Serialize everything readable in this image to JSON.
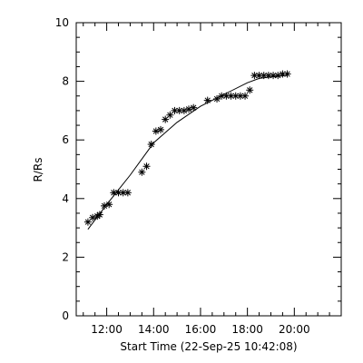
{
  "chart_data": {
    "type": "scatter",
    "title": "",
    "xlabel": "Start Time (22-Sep-25 10:42:08)",
    "ylabel": "R/Rs",
    "x_unit": "clock time (HH:MM)",
    "xlim": [
      "10:42",
      "22:00"
    ],
    "ylim": [
      0,
      10
    ],
    "x_ticks": [
      "12:00",
      "14:00",
      "16:00",
      "18:00",
      "20:00"
    ],
    "y_ticks": [
      "0",
      "2",
      "4",
      "6",
      "8",
      "10"
    ],
    "grid": false,
    "legend": "none",
    "marker": "asterisk",
    "color": "#000000",
    "series": [
      {
        "x": [
          "11:12",
          "11:24",
          "11:36",
          "11:42",
          "11:54",
          "12:06",
          "12:18",
          "12:30",
          "12:42",
          "12:54",
          "13:30",
          "13:42",
          "13:54",
          "14:06",
          "14:18",
          "14:30",
          "14:42",
          "14:54",
          "15:06",
          "15:18",
          "15:30",
          "15:42",
          "16:18",
          "16:42",
          "16:54",
          "17:06",
          "17:18",
          "17:30",
          "17:42",
          "17:54",
          "18:06",
          "18:18",
          "18:30",
          "18:42",
          "18:54",
          "19:06",
          "19:18",
          "19:30",
          "19:42"
        ],
        "y": [
          3.2,
          3.35,
          3.4,
          3.45,
          3.75,
          3.8,
          4.2,
          4.2,
          4.2,
          4.2,
          4.9,
          5.1,
          5.85,
          6.3,
          6.35,
          6.7,
          6.85,
          7.0,
          7.0,
          7.0,
          7.05,
          7.1,
          7.35,
          7.4,
          7.5,
          7.5,
          7.5,
          7.5,
          7.5,
          7.5,
          7.7,
          8.2,
          8.2,
          8.2,
          8.2,
          8.2,
          8.2,
          8.25,
          8.25
        ]
      }
    ],
    "fit_curve": {
      "x": [
        "11:12",
        "12:00",
        "13:00",
        "14:00",
        "15:00",
        "16:00",
        "17:00",
        "18:00",
        "18:30",
        "19:00",
        "19:42"
      ],
      "y": [
        2.95,
        3.8,
        4.8,
        5.9,
        6.6,
        7.15,
        7.55,
        7.95,
        8.1,
        8.15,
        8.2
      ]
    }
  }
}
